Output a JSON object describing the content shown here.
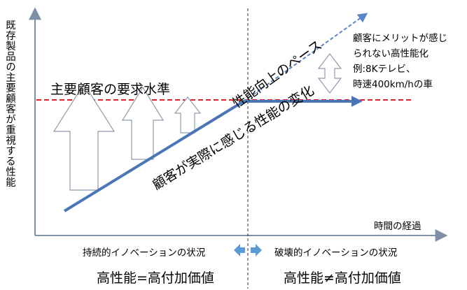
{
  "y_axis_label": "既存製品の主要顧客が重視する性能",
  "x_axis_label": "時間の経過",
  "customer_requirement_label": "主要顧客の要求水準",
  "pace_label": "性能向上のペース",
  "perceived_label": "顧客が実際に感じる性能の変化",
  "note_lines": [
    "顧客にメリットが感じ",
    "られない高性能化",
    "例:8Kテレビ、",
    "時速400km/hの車"
  ],
  "left_situation": "持続的イノベーションの状況",
  "right_situation": "破壊的イノベーションの状況",
  "left_equation": "高性能=高付加価値",
  "right_equation": "高性能≠高付加価値",
  "colors": {
    "axis": "#7f8fa6",
    "red_dash": "#e0202a",
    "blue_line": "#4a76b8",
    "blue_dashed": "#5b85c9",
    "arrow_fill": "#5b9bd5",
    "outline": "#7f8fa6"
  }
}
